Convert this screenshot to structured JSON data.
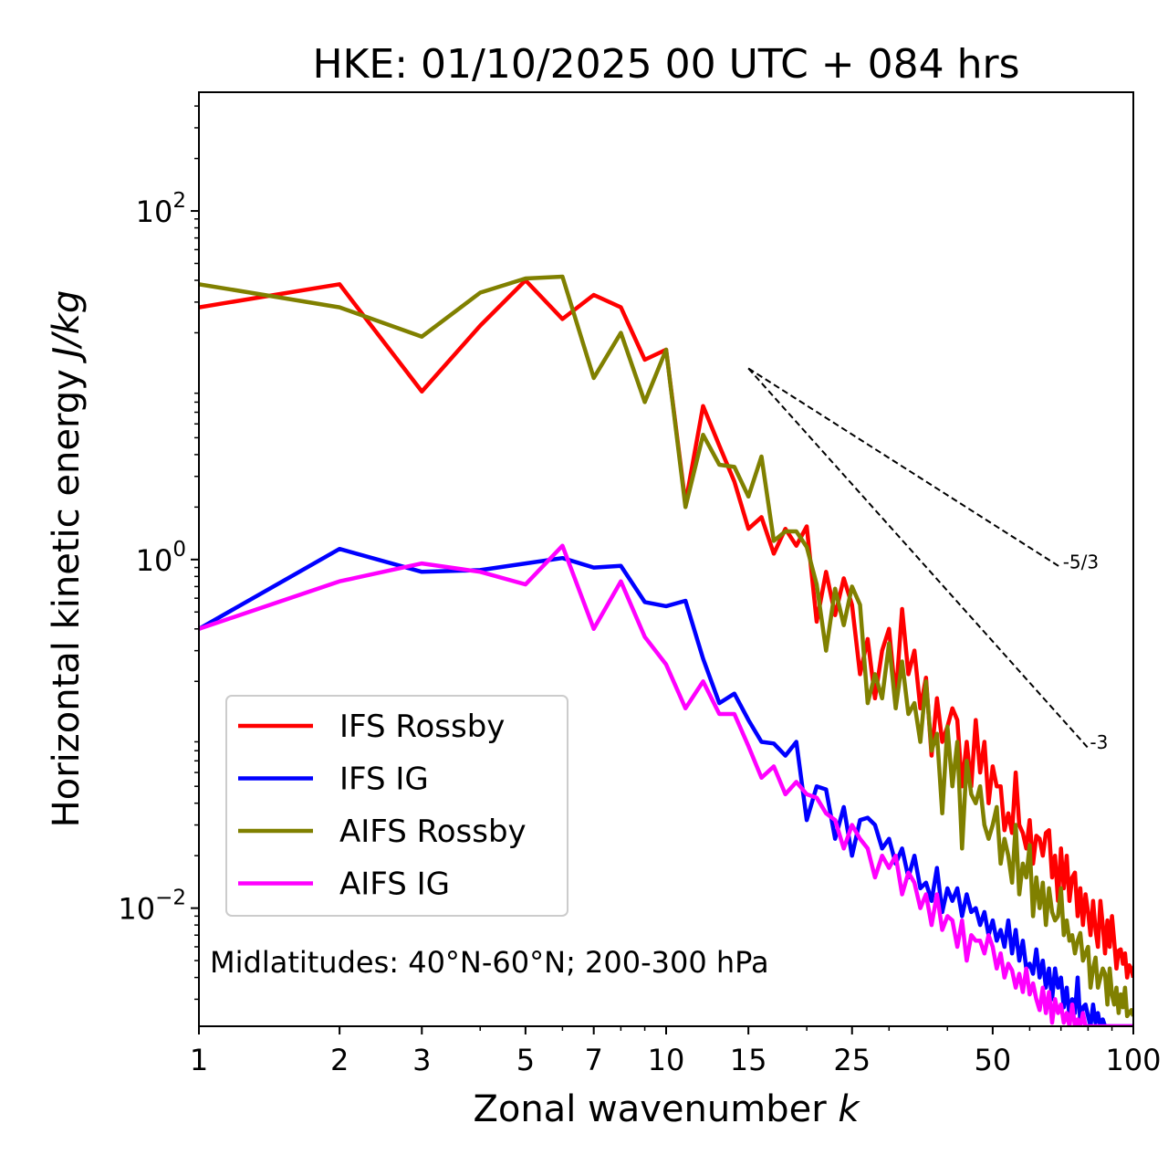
{
  "chart_data": {
    "type": "line",
    "title": "HKE: 01/10/2025 00 UTC + 084 hrs",
    "xlabel": "Zonal wavenumber",
    "xlabel_var": "k",
    "ylabel": "Horizontal kinetic energy",
    "ylabel_units": "J/kg",
    "xscale": "log",
    "yscale": "log",
    "xlim": [
      1,
      100
    ],
    "ylim": [
      0.0021,
      480
    ],
    "x_ticks": [
      {
        "value": 1,
        "label": "1"
      },
      {
        "value": 2,
        "label": "2"
      },
      {
        "value": 3,
        "label": "3"
      },
      {
        "value": 5,
        "label": "5"
      },
      {
        "value": 7,
        "label": "7"
      },
      {
        "value": 10,
        "label": "10"
      },
      {
        "value": 15,
        "label": "15"
      },
      {
        "value": 25,
        "label": "25"
      },
      {
        "value": 50,
        "label": "50"
      },
      {
        "value": 100,
        "label": "100"
      }
    ],
    "y_ticks": [
      {
        "value": 100,
        "base": "10",
        "exp": "2"
      },
      {
        "value": 1,
        "base": "10",
        "exp": "0"
      },
      {
        "value": 0.01,
        "base": "10",
        "exp": "−2"
      }
    ],
    "legend_position": "lower-left",
    "annotation": "Midlatitudes: 40°N-60°N; 200-300 hPa",
    "reference_slopes": [
      {
        "label": "-5/3",
        "x": [
          15,
          70
        ],
        "y": [
          12.5,
          0.9
        ]
      },
      {
        "label": "-3",
        "x": [
          15,
          80
        ],
        "y": [
          12.5,
          0.083
        ]
      }
    ],
    "series": [
      {
        "name": "IFS Rossby",
        "color": "#ff0000",
        "x": [
          1,
          2,
          3,
          4,
          5,
          6,
          7,
          8,
          9,
          10,
          11,
          12,
          13,
          14,
          15,
          16,
          17,
          18,
          19,
          20,
          21,
          22,
          23,
          24,
          25,
          26,
          27,
          28,
          29,
          30,
          31,
          32,
          33,
          34,
          35,
          36,
          37,
          38,
          39,
          40,
          41,
          42,
          43,
          44,
          45,
          46,
          47,
          48,
          49,
          50,
          51,
          52,
          53,
          54,
          55,
          56,
          57,
          58,
          59,
          60,
          61,
          62,
          63,
          64,
          65,
          66,
          67,
          68,
          69,
          70,
          71,
          72,
          73,
          74,
          75,
          76,
          77,
          78,
          79,
          80,
          81,
          82,
          83,
          84,
          85,
          86,
          87,
          88,
          89,
          90,
          91,
          92,
          93,
          94,
          95,
          96,
          97,
          98,
          99,
          100
        ],
        "y": [
          28,
          38,
          9.2,
          22,
          40,
          24,
          33,
          28,
          14,
          16,
          2.1,
          7.6,
          4.5,
          2.8,
          1.5,
          1.75,
          1.08,
          1.5,
          1.2,
          1.55,
          0.44,
          0.85,
          0.48,
          0.78,
          0.55,
          0.22,
          0.35,
          0.16,
          0.3,
          0.4,
          0.16,
          0.52,
          0.22,
          0.3,
          0.14,
          0.21,
          0.075,
          0.16,
          0.09,
          0.11,
          0.14,
          0.12,
          0.05,
          0.09,
          0.05,
          0.12,
          0.06,
          0.09,
          0.04,
          0.065,
          0.05,
          0.05,
          0.028,
          0.035,
          0.027,
          0.06,
          0.03,
          0.027,
          0.022,
          0.032,
          0.018,
          0.026,
          0.025,
          0.02,
          0.027,
          0.028,
          0.015,
          0.02,
          0.011,
          0.022,
          0.013,
          0.02,
          0.011,
          0.015,
          0.016,
          0.009,
          0.013,
          0.008,
          0.012,
          0.0095,
          0.007,
          0.011,
          0.0075,
          0.006,
          0.011,
          0.008,
          0.0055,
          0.0085,
          0.006,
          0.009,
          0.0065,
          0.0045,
          0.0057,
          0.0058,
          0.0048,
          0.0055,
          0.004,
          0.0047,
          0.0045,
          0.004
        ]
      },
      {
        "name": "IFS IG",
        "color": "#0000ff",
        "x": [
          1,
          2,
          3,
          4,
          5,
          6,
          7,
          8,
          9,
          10,
          11,
          12,
          13,
          14,
          15,
          16,
          17,
          18,
          19,
          20,
          21,
          22,
          23,
          24,
          25,
          26,
          27,
          28,
          29,
          30,
          31,
          32,
          33,
          34,
          35,
          36,
          37,
          38,
          39,
          40,
          41,
          42,
          43,
          44,
          45,
          46,
          47,
          48,
          49,
          50,
          51,
          52,
          53,
          54,
          55,
          56,
          57,
          58,
          59,
          60,
          61,
          62,
          63,
          64,
          65,
          66,
          67,
          68,
          69,
          70,
          71,
          72,
          73,
          74,
          75,
          76,
          77,
          78,
          79,
          80,
          81,
          82,
          83,
          84,
          85,
          86,
          87,
          88,
          89,
          90,
          91,
          92,
          93,
          94,
          95,
          96,
          97,
          98,
          99,
          100
        ],
        "y": [
          0.4,
          1.15,
          0.85,
          0.87,
          0.95,
          1.02,
          0.9,
          0.92,
          0.57,
          0.54,
          0.58,
          0.27,
          0.15,
          0.17,
          0.12,
          0.09,
          0.088,
          0.075,
          0.09,
          0.032,
          0.05,
          0.048,
          0.025,
          0.038,
          0.02,
          0.032,
          0.033,
          0.03,
          0.022,
          0.025,
          0.018,
          0.022,
          0.015,
          0.02,
          0.013,
          0.014,
          0.011,
          0.017,
          0.0095,
          0.013,
          0.011,
          0.013,
          0.009,
          0.012,
          0.0095,
          0.01,
          0.008,
          0.0095,
          0.007,
          0.0085,
          0.0065,
          0.0075,
          0.006,
          0.0085,
          0.0055,
          0.0075,
          0.005,
          0.0065,
          0.0045,
          0.0048,
          0.0042,
          0.0058,
          0.004,
          0.005,
          0.0035,
          0.0045,
          0.003,
          0.0045,
          0.0035,
          0.004,
          0.0027,
          0.0035,
          0.0024,
          0.003,
          0.0025,
          0.004,
          0.0022,
          0.0027,
          0.0028,
          0.0024,
          0.0021,
          0.0028,
          0.0022,
          0.0025,
          0.0021,
          0.0023,
          0.0021,
          0.0021,
          0.0021,
          0.0021,
          0.0021,
          0.0021,
          0.0021,
          0.0021,
          0.0021,
          0.0021,
          0.0021,
          0.0021,
          0.0021,
          0.0021
        ]
      },
      {
        "name": "AIFS Rossby",
        "color": "#808000",
        "x": [
          1,
          2,
          3,
          4,
          5,
          6,
          7,
          8,
          9,
          10,
          11,
          12,
          13,
          14,
          15,
          16,
          17,
          18,
          19,
          20,
          21,
          22,
          23,
          24,
          25,
          26,
          27,
          28,
          29,
          30,
          31,
          32,
          33,
          34,
          35,
          36,
          37,
          38,
          39,
          40,
          41,
          42,
          43,
          44,
          45,
          46,
          47,
          48,
          49,
          50,
          51,
          52,
          53,
          54,
          55,
          56,
          57,
          58,
          59,
          60,
          61,
          62,
          63,
          64,
          65,
          66,
          67,
          68,
          69,
          70,
          71,
          72,
          73,
          74,
          75,
          76,
          77,
          78,
          79,
          80,
          81,
          82,
          83,
          84,
          85,
          86,
          87,
          88,
          89,
          90,
          91,
          92,
          93,
          94,
          95,
          96,
          97,
          98,
          99,
          100
        ],
        "y": [
          38,
          28,
          19,
          34,
          41,
          42,
          11,
          20,
          8,
          16,
          2,
          5.2,
          3.5,
          3.4,
          2.3,
          3.9,
          1.28,
          1.45,
          1.45,
          1.18,
          0.72,
          0.3,
          0.68,
          0.42,
          0.7,
          0.55,
          0.15,
          0.22,
          0.16,
          0.33,
          0.14,
          0.26,
          0.13,
          0.15,
          0.09,
          0.2,
          0.08,
          0.1,
          0.035,
          0.11,
          0.05,
          0.09,
          0.022,
          0.07,
          0.045,
          0.04,
          0.05,
          0.03,
          0.025,
          0.03,
          0.038,
          0.018,
          0.025,
          0.02,
          0.014,
          0.03,
          0.012,
          0.018,
          0.015,
          0.023,
          0.009,
          0.015,
          0.01,
          0.014,
          0.008,
          0.013,
          0.0095,
          0.0085,
          0.009,
          0.013,
          0.007,
          0.0085,
          0.0065,
          0.007,
          0.0055,
          0.0065,
          0.0072,
          0.005,
          0.0055,
          0.006,
          0.0035,
          0.0045,
          0.0052,
          0.0035,
          0.004,
          0.0045,
          0.0042,
          0.0028,
          0.0045,
          0.0032,
          0.0028,
          0.0035,
          0.0025,
          0.0032,
          0.0027,
          0.0035,
          0.0024,
          0.0025,
          0.0026,
          0.0024
        ]
      },
      {
        "name": "AIFS IG",
        "color": "#ff00ff",
        "x": [
          1,
          2,
          3,
          4,
          5,
          6,
          7,
          8,
          9,
          10,
          11,
          12,
          13,
          14,
          15,
          16,
          17,
          18,
          19,
          20,
          21,
          22,
          23,
          24,
          25,
          26,
          27,
          28,
          29,
          30,
          31,
          32,
          33,
          34,
          35,
          36,
          37,
          38,
          39,
          40,
          41,
          42,
          43,
          44,
          45,
          46,
          47,
          48,
          49,
          50,
          51,
          52,
          53,
          54,
          55,
          56,
          57,
          58,
          59,
          60,
          61,
          62,
          63,
          64,
          65,
          66,
          67,
          68,
          69,
          70,
          71,
          72,
          73,
          74,
          75,
          76,
          77,
          78,
          79,
          80,
          81,
          82,
          83,
          84,
          85,
          86,
          87,
          88,
          89,
          90,
          91,
          92,
          93,
          94,
          95,
          96,
          97,
          98,
          99,
          100
        ],
        "y": [
          0.4,
          0.75,
          0.95,
          0.85,
          0.72,
          1.2,
          0.4,
          0.75,
          0.36,
          0.25,
          0.14,
          0.2,
          0.13,
          0.13,
          0.085,
          0.056,
          0.065,
          0.045,
          0.053,
          0.045,
          0.043,
          0.035,
          0.032,
          0.022,
          0.03,
          0.025,
          0.022,
          0.015,
          0.02,
          0.017,
          0.02,
          0.012,
          0.016,
          0.014,
          0.01,
          0.012,
          0.008,
          0.012,
          0.0075,
          0.009,
          0.0085,
          0.006,
          0.0085,
          0.005,
          0.007,
          0.0065,
          0.0065,
          0.0055,
          0.007,
          0.006,
          0.0045,
          0.0055,
          0.004,
          0.0048,
          0.0044,
          0.0035,
          0.0042,
          0.0033,
          0.0045,
          0.0032,
          0.0037,
          0.003,
          0.0026,
          0.0035,
          0.0025,
          0.0033,
          0.0022,
          0.003,
          0.0025,
          0.0028,
          0.0022,
          0.0025,
          0.0021,
          0.0028,
          0.0021,
          0.0023,
          0.0021,
          0.0025,
          0.0021,
          0.0021,
          0.0021,
          0.0021,
          0.0021,
          0.0021,
          0.0021,
          0.0021,
          0.0021,
          0.0021,
          0.0021,
          0.0021,
          0.0021,
          0.0021,
          0.0021,
          0.0021,
          0.0021,
          0.0021,
          0.0021,
          0.0021,
          0.0021,
          0.0021
        ]
      }
    ]
  }
}
